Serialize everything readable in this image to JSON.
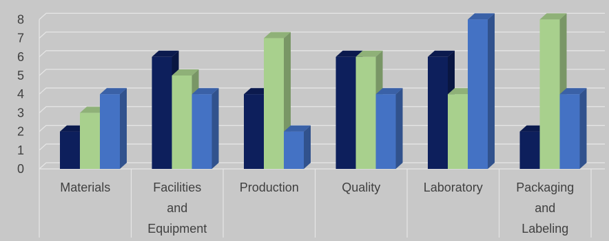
{
  "chart_data": {
    "type": "bar",
    "categories": [
      [
        "Materials"
      ],
      [
        "Facilities",
        "and",
        "Equipment"
      ],
      [
        "Production"
      ],
      [
        "Quality"
      ],
      [
        "Laboratory"
      ],
      [
        "Packaging",
        "and",
        "Labeling"
      ]
    ],
    "series": [
      {
        "values": [
          2,
          6,
          4,
          6,
          6,
          2
        ],
        "color": "#0d1f5c"
      },
      {
        "values": [
          3,
          5,
          7,
          6,
          4,
          8
        ],
        "color": "#a8d08d"
      },
      {
        "values": [
          4,
          4,
          2,
          4,
          8,
          4
        ],
        "color": "#4472c4"
      }
    ],
    "yticks": [
      0,
      1,
      2,
      3,
      4,
      5,
      6,
      7,
      8
    ],
    "ylim": [
      0,
      8
    ],
    "grid": true,
    "legend": "none",
    "background_color": "#c8c8c8",
    "grid_color": "#e6e6e6",
    "tick_label_color": "#404040"
  }
}
